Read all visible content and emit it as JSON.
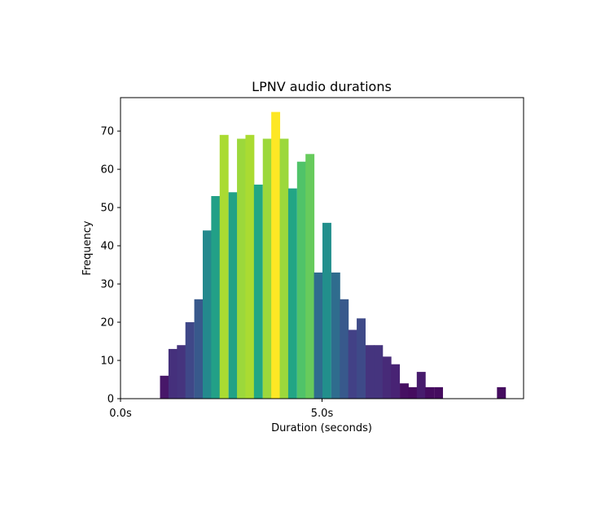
{
  "chart_data": {
    "type": "bar",
    "title": "LPNV audio durations",
    "xlabel": "Duration (seconds)",
    "ylabel": "Frequency",
    "xlim": [
      0,
      10
    ],
    "ylim": [
      0,
      78.75
    ],
    "bin_width": 0.2125,
    "x_ticks": [
      {
        "value": 0,
        "label": "0.0s"
      },
      {
        "value": 5,
        "label": "5.0s"
      }
    ],
    "y_ticks": [
      0,
      10,
      20,
      30,
      40,
      50,
      60,
      70
    ],
    "grid": false,
    "legend": "none",
    "bins": [
      {
        "x": 0.98,
        "count": 6
      },
      {
        "x": 1.19,
        "count": 13
      },
      {
        "x": 1.4,
        "count": 14
      },
      {
        "x": 1.61,
        "count": 20
      },
      {
        "x": 1.83,
        "count": 26
      },
      {
        "x": 2.04,
        "count": 44
      },
      {
        "x": 2.25,
        "count": 53
      },
      {
        "x": 2.46,
        "count": 69
      },
      {
        "x": 2.68,
        "count": 54
      },
      {
        "x": 2.89,
        "count": 68
      },
      {
        "x": 3.1,
        "count": 69
      },
      {
        "x": 3.31,
        "count": 56
      },
      {
        "x": 3.53,
        "count": 68
      },
      {
        "x": 3.74,
        "count": 75
      },
      {
        "x": 3.95,
        "count": 68
      },
      {
        "x": 4.16,
        "count": 55
      },
      {
        "x": 4.38,
        "count": 62
      },
      {
        "x": 4.59,
        "count": 64
      },
      {
        "x": 4.8,
        "count": 33
      },
      {
        "x": 5.01,
        "count": 46
      },
      {
        "x": 5.23,
        "count": 33
      },
      {
        "x": 5.44,
        "count": 26
      },
      {
        "x": 5.65,
        "count": 18
      },
      {
        "x": 5.86,
        "count": 21
      },
      {
        "x": 6.08,
        "count": 14
      },
      {
        "x": 6.29,
        "count": 14
      },
      {
        "x": 6.5,
        "count": 11
      },
      {
        "x": 6.71,
        "count": 9
      },
      {
        "x": 6.93,
        "count": 4
      },
      {
        "x": 7.14,
        "count": 3
      },
      {
        "x": 7.35,
        "count": 7
      },
      {
        "x": 7.56,
        "count": 3
      },
      {
        "x": 7.78,
        "count": 3
      },
      {
        "x": 9.34,
        "count": 3
      }
    ]
  }
}
